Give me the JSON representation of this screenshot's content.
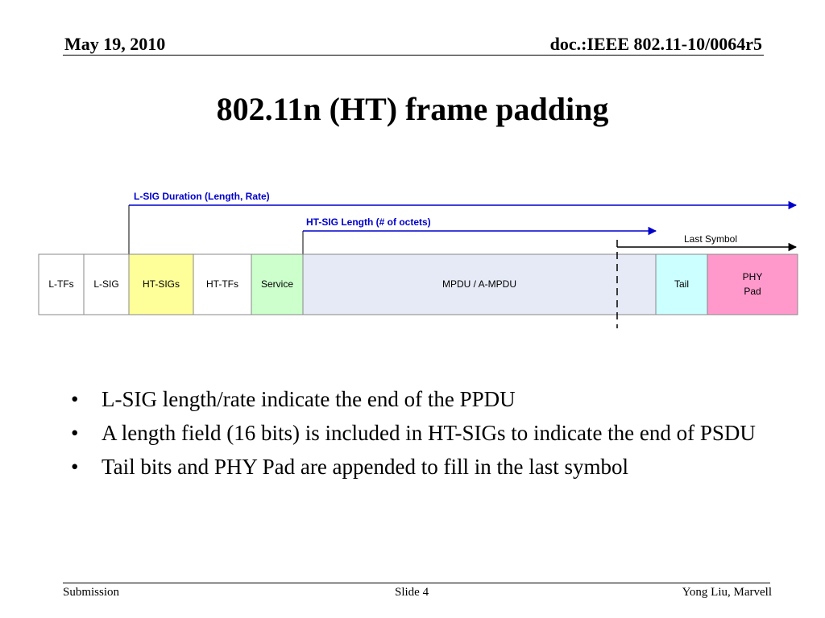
{
  "header": {
    "date": "May 19, 2010",
    "doc_id": "doc.:IEEE 802.11-10/0064r5"
  },
  "title": "802.11n (HT) frame padding",
  "diagram": {
    "lsig_arrow_label": "L-SIG Duration (Length, Rate)",
    "htsig_arrow_label": "HT-SIG Length (# of octets)",
    "last_symbol_label": "Last Symbol",
    "arrow_color": "#0000cc",
    "fields": [
      {
        "label": "L-TFs",
        "color": "#ffffff"
      },
      {
        "label": "L-SIG",
        "color": "#ffffff"
      },
      {
        "label": "HT-SIGs",
        "color": "#ffff99"
      },
      {
        "label": "HT-TFs",
        "color": "#ffffff"
      },
      {
        "label": "Service",
        "color": "#ccffcc"
      },
      {
        "label": "MPDU / A-MPDU",
        "color": "#e6eaf6"
      },
      {
        "label": "Tail",
        "color": "#ccffff"
      },
      {
        "label": "PHY",
        "label2": "Pad",
        "color": "#ff99cc"
      }
    ]
  },
  "bullets": [
    "L-SIG length/rate indicate the end of the PPDU",
    "A length field (16 bits) is included in HT-SIGs to indicate the end of PSDU",
    "Tail bits and PHY Pad are appended to fill in the last symbol"
  ],
  "bullet_glyph": "•",
  "footer": {
    "left": "Submission",
    "center": "Slide 4",
    "right": "Yong Liu, Marvell"
  }
}
